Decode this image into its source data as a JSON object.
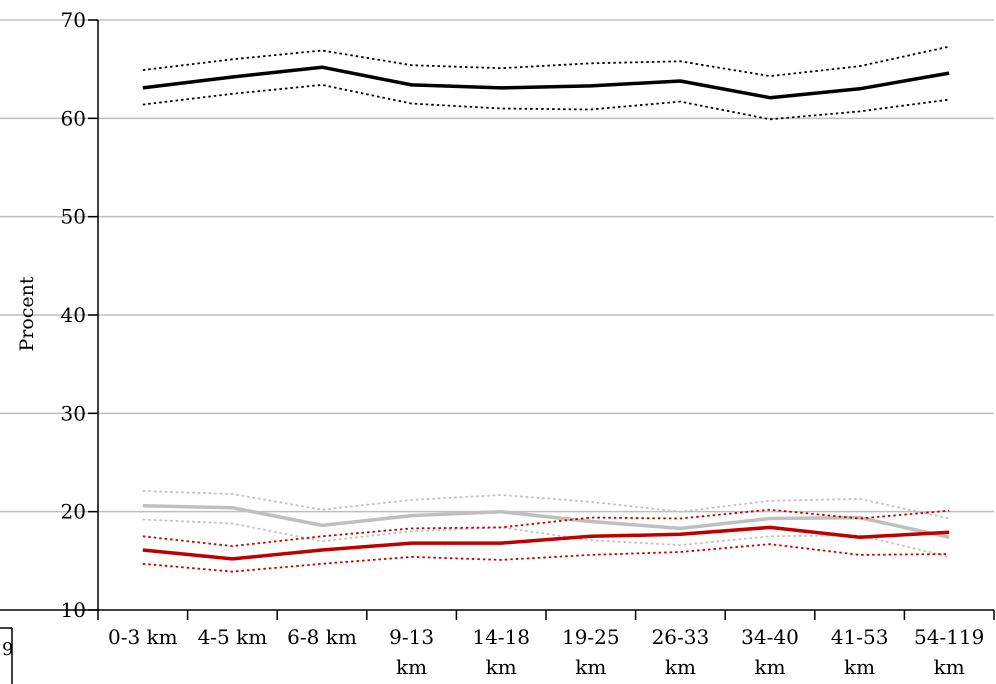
{
  "chart_data": {
    "type": "line",
    "title": "",
    "xlabel": "",
    "ylabel": "Procent",
    "ylim": [
      10,
      70
    ],
    "yticks": [
      10,
      20,
      30,
      40,
      50,
      60,
      70
    ],
    "grid": true,
    "legend": "none",
    "categories": [
      [
        "0-3 km"
      ],
      [
        "4-5 km"
      ],
      [
        "6-8 km"
      ],
      [
        "9-13",
        "km"
      ],
      [
        "14-18",
        "km"
      ],
      [
        "19-25",
        "km"
      ],
      [
        "26-33",
        "km"
      ],
      [
        "34-40",
        "km"
      ],
      [
        "41-53",
        "km"
      ],
      [
        "54-119",
        "km"
      ]
    ],
    "series": [
      {
        "color": "#000000",
        "style": "solid",
        "values": [
          63.1,
          64.2,
          65.2,
          63.4,
          63.1,
          63.3,
          63.8,
          62.1,
          63.0,
          64.6
        ]
      },
      {
        "color": "#000000",
        "style": "dotted",
        "values": [
          64.9,
          66.0,
          66.9,
          65.4,
          65.1,
          65.6,
          65.8,
          64.3,
          65.3,
          67.3
        ]
      },
      {
        "color": "#000000",
        "style": "dotted",
        "values": [
          61.4,
          62.5,
          63.4,
          61.5,
          61.0,
          60.9,
          61.7,
          59.9,
          60.7,
          61.9
        ]
      },
      {
        "color": "#bfbfbf",
        "style": "solid",
        "values": [
          20.6,
          20.4,
          18.6,
          19.6,
          20.0,
          19.0,
          18.3,
          19.3,
          19.4,
          17.4
        ]
      },
      {
        "color": "#bfbfbf",
        "style": "dotted",
        "values": [
          22.1,
          21.8,
          20.2,
          21.2,
          21.7,
          21.0,
          20.0,
          21.1,
          21.3,
          19.3
        ]
      },
      {
        "color": "#bfbfbf",
        "style": "dotted",
        "values": [
          19.2,
          18.8,
          17.0,
          18.0,
          18.4,
          17.1,
          16.6,
          17.5,
          17.6,
          15.4
        ]
      },
      {
        "color": "#c00000",
        "style": "solid",
        "values": [
          16.1,
          15.2,
          16.1,
          16.8,
          16.8,
          17.5,
          17.7,
          18.4,
          17.4,
          17.9
        ]
      },
      {
        "color": "#c00000",
        "style": "dotted",
        "values": [
          17.5,
          16.5,
          17.5,
          18.3,
          18.4,
          19.4,
          19.3,
          20.2,
          19.3,
          20.1
        ]
      },
      {
        "color": "#c00000",
        "style": "dotted",
        "values": [
          14.7,
          13.9,
          14.7,
          15.4,
          15.1,
          15.6,
          15.9,
          16.7,
          15.6,
          15.7
        ]
      }
    ]
  },
  "edge_text": "9"
}
